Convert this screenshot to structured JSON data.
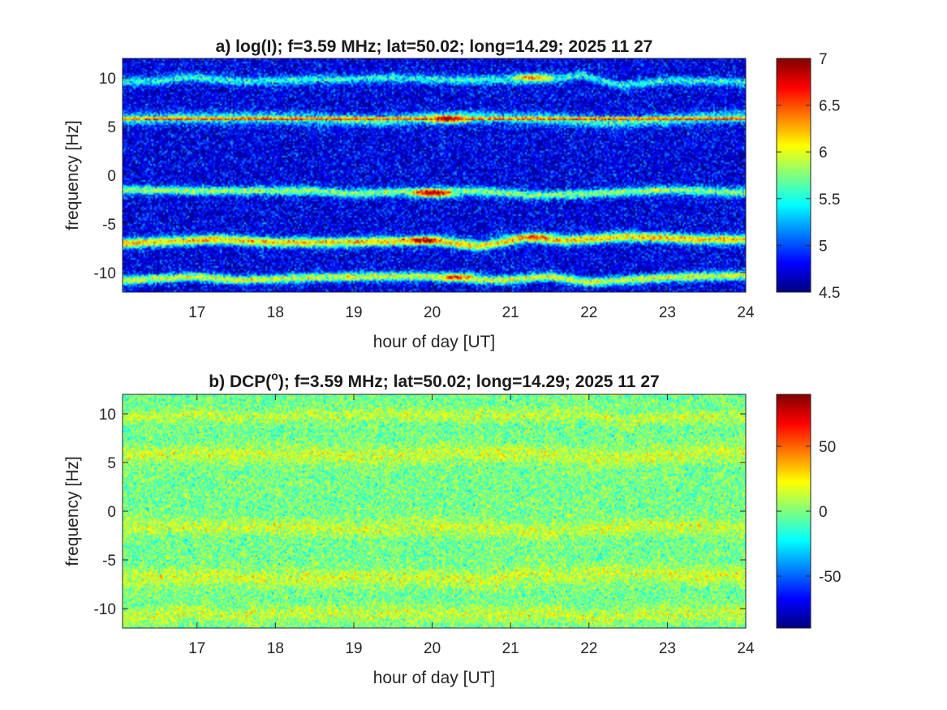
{
  "colors": {
    "axis": "#262626",
    "background": "#ffffff",
    "colormap": "jet"
  },
  "chart_data": [
    {
      "type": "heatmap",
      "title": "a) log(I); f=3.59 MHz;  lat=50.02; long=14.29; 2025 11 27",
      "xlabel": "hour of day [UT]",
      "ylabel": "frequency [Hz]",
      "xlim": [
        16.05,
        24
      ],
      "ylim": [
        -12,
        12
      ],
      "xticks": [
        17,
        18,
        19,
        20,
        21,
        22,
        23,
        24
      ],
      "xtick_labels": [
        "17",
        "18",
        "19",
        "20",
        "21",
        "22",
        "23",
        "24"
      ],
      "yticks": [
        10,
        5,
        0,
        -5,
        -10
      ],
      "ytick_labels": [
        "10",
        "5",
        "0",
        "-5",
        "-10"
      ],
      "colorbar": {
        "colormap": "jet",
        "clim": [
          4.5,
          7
        ],
        "ticks": [
          7,
          6.5,
          6,
          5.5,
          5,
          4.5
        ],
        "tick_labels": [
          "7",
          "6.5",
          "6",
          "5.5",
          "5",
          "4.5"
        ]
      },
      "background_level": 4.75,
      "bands": [
        {
          "center": [
            [
              16.1,
              9.6
            ],
            [
              16.5,
              9.7
            ],
            [
              16.9,
              10.1
            ],
            [
              17.5,
              9.6
            ],
            [
              18.5,
              9.8
            ],
            [
              19.5,
              10.0
            ],
            [
              20.3,
              9.8
            ],
            [
              21.0,
              9.8
            ],
            [
              21.5,
              9.8
            ],
            [
              21.9,
              10.3
            ],
            [
              22.4,
              9.2
            ],
            [
              23.0,
              9.7
            ],
            [
              24.0,
              9.6
            ]
          ],
          "level": 5.5,
          "width": 0.45
        },
        {
          "center": [
            [
              16.1,
              5.8
            ],
            [
              20.0,
              5.8
            ],
            [
              24.0,
              5.8
            ]
          ],
          "level": 6.6,
          "width": 0.22
        },
        {
          "center": [
            [
              16.1,
              5.8
            ],
            [
              18.0,
              5.9
            ],
            [
              19.3,
              5.6
            ],
            [
              20.3,
              6.0
            ],
            [
              21.5,
              5.8
            ],
            [
              22.3,
              5.4
            ],
            [
              23.5,
              5.9
            ],
            [
              24.0,
              6.0
            ]
          ],
          "level": 5.6,
          "width": 0.6
        },
        {
          "center": [
            [
              16.1,
              -1.5
            ],
            [
              17.0,
              -1.6
            ],
            [
              18.5,
              -1.6
            ],
            [
              19.0,
              -1.9
            ],
            [
              19.5,
              -1.7
            ],
            [
              20.2,
              -1.6
            ],
            [
              20.8,
              -1.7
            ],
            [
              21.3,
              -2.1
            ],
            [
              22.0,
              -1.9
            ],
            [
              23.0,
              -1.5
            ],
            [
              24.0,
              -1.8
            ]
          ],
          "level": 5.8,
          "width": 0.45
        },
        {
          "center": [
            [
              16.1,
              -7.0
            ],
            [
              16.6,
              -6.8
            ],
            [
              17.3,
              -6.6
            ],
            [
              18.0,
              -6.9
            ],
            [
              18.8,
              -6.9
            ],
            [
              19.3,
              -6.8
            ],
            [
              20.0,
              -6.7
            ],
            [
              20.6,
              -7.3
            ],
            [
              21.2,
              -6.4
            ],
            [
              21.7,
              -6.7
            ],
            [
              22.5,
              -6.3
            ],
            [
              23.4,
              -6.6
            ],
            [
              24.0,
              -6.6
            ]
          ],
          "level": 6.2,
          "width": 0.5
        },
        {
          "center": [
            [
              16.1,
              -10.8
            ],
            [
              17.0,
              -10.4
            ],
            [
              17.5,
              -10.8
            ],
            [
              18.5,
              -10.5
            ],
            [
              19.2,
              -10.4
            ],
            [
              20.0,
              -10.4
            ],
            [
              20.8,
              -10.8
            ],
            [
              21.5,
              -10.4
            ],
            [
              22.0,
              -11.0
            ],
            [
              23.0,
              -10.5
            ],
            [
              24.0,
              -10.3
            ]
          ],
          "level": 6.0,
          "width": 0.45
        }
      ],
      "hotspots": [
        {
          "x": 20.2,
          "y": 5.8,
          "level": 7.0
        },
        {
          "x": 20.0,
          "y": -1.8,
          "level": 7.0
        },
        {
          "x": 19.9,
          "y": -6.7,
          "level": 7.0
        },
        {
          "x": 21.3,
          "y": -6.4,
          "level": 6.6
        },
        {
          "x": 21.3,
          "y": 10.0,
          "level": 6.4
        },
        {
          "x": 20.3,
          "y": -10.5,
          "level": 6.6
        }
      ]
    },
    {
      "type": "heatmap",
      "title": "b) DCP(",
      "title_superscript": "o",
      "title_rest": "); f=3.59 MHz;  lat=50.02; long=14.29; 2025 11 27",
      "xlabel": "hour of day [UT]",
      "ylabel": "frequency [Hz]",
      "xlim": [
        16.05,
        24
      ],
      "ylim": [
        -12,
        12
      ],
      "xticks": [
        17,
        18,
        19,
        20,
        21,
        22,
        23,
        24
      ],
      "xtick_labels": [
        "17",
        "18",
        "19",
        "20",
        "21",
        "22",
        "23",
        "24"
      ],
      "yticks": [
        10,
        5,
        0,
        -5,
        -10
      ],
      "ytick_labels": [
        "10",
        "5",
        "0",
        "-5",
        "-10"
      ],
      "colorbar": {
        "colormap": "jet",
        "clim": [
          -90,
          90
        ],
        "ticks": [
          50,
          0,
          -50
        ],
        "tick_labels": [
          "50",
          "0",
          "-50"
        ]
      },
      "background_level": -2,
      "bands": [
        {
          "center": [
            [
              16.1,
              9.6
            ],
            [
              16.5,
              9.7
            ],
            [
              16.9,
              10.1
            ],
            [
              17.5,
              9.6
            ],
            [
              18.5,
              9.8
            ],
            [
              19.5,
              10.0
            ],
            [
              20.3,
              9.8
            ],
            [
              21.0,
              9.8
            ],
            [
              21.5,
              9.8
            ],
            [
              21.9,
              10.3
            ],
            [
              22.4,
              9.2
            ],
            [
              23.0,
              9.7
            ],
            [
              24.0,
              9.6
            ]
          ],
          "level": 12,
          "width": 0.6
        },
        {
          "center": [
            [
              16.1,
              5.8
            ],
            [
              18.0,
              5.9
            ],
            [
              19.3,
              5.6
            ],
            [
              20.3,
              6.0
            ],
            [
              21.5,
              5.8
            ],
            [
              22.3,
              5.4
            ],
            [
              23.5,
              5.9
            ],
            [
              24.0,
              6.0
            ]
          ],
          "level": 14,
          "width": 0.9
        },
        {
          "center": [
            [
              16.1,
              -1.5
            ],
            [
              17.0,
              -1.6
            ],
            [
              18.5,
              -1.6
            ],
            [
              19.0,
              -1.9
            ],
            [
              19.5,
              -1.7
            ],
            [
              20.2,
              -1.6
            ],
            [
              20.8,
              -1.7
            ],
            [
              21.3,
              -2.1
            ],
            [
              22.0,
              -1.9
            ],
            [
              23.0,
              -1.5
            ],
            [
              24.0,
              -1.8
            ]
          ],
          "level": 13,
          "width": 0.8
        },
        {
          "center": [
            [
              16.1,
              -7.0
            ],
            [
              16.6,
              -6.8
            ],
            [
              17.3,
              -6.6
            ],
            [
              18.0,
              -6.9
            ],
            [
              18.8,
              -6.9
            ],
            [
              19.3,
              -6.8
            ],
            [
              20.0,
              -6.7
            ],
            [
              20.6,
              -7.3
            ],
            [
              21.2,
              -6.4
            ],
            [
              21.7,
              -6.7
            ],
            [
              22.5,
              -6.3
            ],
            [
              23.4,
              -6.6
            ],
            [
              24.0,
              -6.6
            ]
          ],
          "level": 14,
          "width": 0.9
        },
        {
          "center": [
            [
              16.1,
              -10.8
            ],
            [
              17.0,
              -10.4
            ],
            [
              17.5,
              -10.8
            ],
            [
              18.5,
              -10.5
            ],
            [
              19.2,
              -10.4
            ],
            [
              20.0,
              -10.4
            ],
            [
              20.8,
              -10.8
            ],
            [
              21.5,
              -10.4
            ],
            [
              22.0,
              -11.0
            ],
            [
              23.0,
              -10.5
            ],
            [
              24.0,
              -10.3
            ]
          ],
          "level": 13,
          "width": 0.8
        }
      ],
      "hotspots": []
    }
  ]
}
